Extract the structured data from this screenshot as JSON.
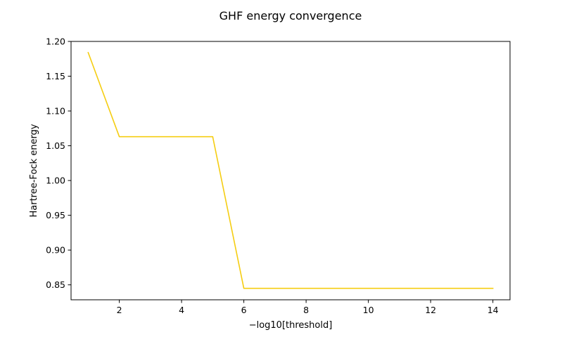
{
  "chart_data": {
    "type": "line",
    "title": "GHF energy convergence",
    "xlabel": "−log10[threshold]",
    "ylabel": "Hartree-Fock energy",
    "xlim": [
      0.45,
      14.55
    ],
    "ylim": [
      0.8285,
      1.2
    ],
    "x_ticks": [
      2,
      4,
      6,
      8,
      10,
      12,
      14
    ],
    "x_tick_labels": [
      "2",
      "4",
      "6",
      "8",
      "10",
      "12",
      "14"
    ],
    "y_ticks": [
      0.85,
      0.9,
      0.95,
      1.0,
      1.05,
      1.1,
      1.15,
      1.2
    ],
    "y_tick_labels": [
      "0.85",
      "0.90",
      "0.95",
      "1.00",
      "1.05",
      "1.10",
      "1.15",
      "1.20"
    ],
    "grid": false,
    "legend": "none",
    "series": [
      {
        "color": "#f5cd12",
        "x": [
          1,
          2,
          3,
          4,
          5,
          6,
          7,
          8,
          9,
          10,
          11,
          12,
          13,
          14
        ],
        "y": [
          1.184,
          1.063,
          1.063,
          1.063,
          1.063,
          0.845,
          0.845,
          0.845,
          0.845,
          0.845,
          0.845,
          0.845,
          0.845,
          0.845
        ]
      }
    ]
  }
}
